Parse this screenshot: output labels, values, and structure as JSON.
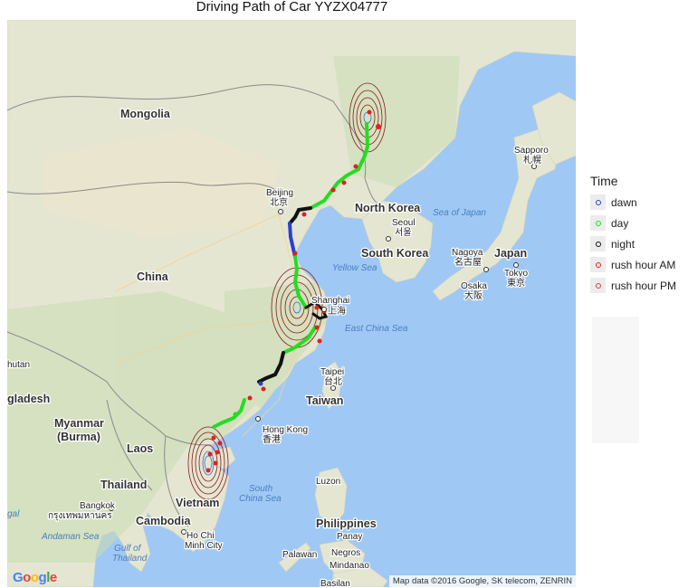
{
  "title": "Driving Path of Car YYZX04777",
  "legend": {
    "title": "Time",
    "items": [
      {
        "label": "dawn",
        "color": "#2a3fd6"
      },
      {
        "label": "day",
        "color": "#22dd22"
      },
      {
        "label": "night",
        "color": "#111111"
      },
      {
        "label": "rush hour AM",
        "color": "#e02020"
      },
      {
        "label": "rush hour PM",
        "color": "#e04040"
      }
    ]
  },
  "map": {
    "countries": [
      "Mongolia",
      "China",
      "North Korea",
      "South Korea",
      "Japan",
      "Taiwan",
      "Myanmar",
      "(Burma)",
      "Laos",
      "Thailand",
      "Vietnam",
      "Cambodia",
      "Philippines",
      "hutan",
      "gladesh"
    ],
    "cities": {
      "beijing": "Beijing",
      "beijing_local": "北京",
      "seoul": "Seoul",
      "seoul_local": "서울",
      "shanghai": "Shanghai",
      "shanghai_local": "上海",
      "taipei": "Taipei",
      "taipei_local": "台北",
      "hong_kong": "Hong Kong",
      "hong_kong_local": "香港",
      "sapporo": "Sapporo",
      "sapporo_local": "札幌",
      "nagoya": "Nagoya",
      "nagoya_local": "名古屋",
      "tokyo": "Tokyo",
      "tokyo_local": "東京",
      "osaka": "Osaka",
      "osaka_local": "大阪",
      "bangkok": "Bangkok",
      "bangkok_local": "กรุงเทพมหานคร",
      "ho_chi_minh_1": "Ho Chi",
      "ho_chi_minh_2": "Minh City",
      "luzon": "Luzon",
      "panay": "Panay",
      "negros": "Negros",
      "palawan": "Palawan",
      "mindanao": "Mindanao",
      "basilan": "Basilan"
    },
    "seas": {
      "sea_of_japan": "Sea of Japan",
      "yellow_sea": "Yellow Sea",
      "east_china_sea": "East China Sea",
      "south_china_sea_1": "South",
      "south_china_sea_2": "China Sea",
      "andaman_sea": "Andaman Sea",
      "gulf_thailand_1": "Gulf of",
      "gulf_thailand_2": "Thailand",
      "bengal_fragment": "gal"
    },
    "google_logo": "Google",
    "attribution": "Map data ©2016 Google, SK telecom, ZENRIN"
  }
}
